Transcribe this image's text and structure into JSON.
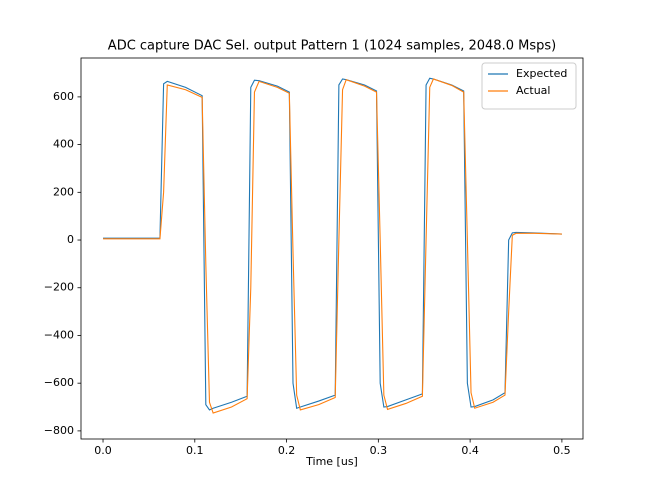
{
  "chart_data": {
    "type": "line",
    "title": "ADC capture DAC Sel. output Pattern 1 (1024 samples, 2048.0 Msps)",
    "x_label": "Time [us]",
    "x": [
      0,
      0.03,
      0.062,
      0.066,
      0.07,
      0.09,
      0.108,
      0.112,
      0.116,
      0.12,
      0.14,
      0.157,
      0.161,
      0.165,
      0.17,
      0.19,
      0.203,
      0.207,
      0.211,
      0.215,
      0.235,
      0.253,
      0.257,
      0.261,
      0.265,
      0.285,
      0.298,
      0.302,
      0.306,
      0.31,
      0.33,
      0.348,
      0.352,
      0.356,
      0.36,
      0.38,
      0.393,
      0.397,
      0.401,
      0.405,
      0.425,
      0.438,
      0.442,
      0.446,
      0.45,
      0.47,
      0.5
    ],
    "series": [
      {
        "name": "Expected",
        "color": "#1f77b4",
        "values": [
          8,
          8,
          8,
          655,
          665,
          640,
          605,
          -690,
          -712,
          -705,
          -680,
          -655,
          640,
          670,
          668,
          645,
          620,
          -600,
          -705,
          -700,
          -675,
          -650,
          650,
          675,
          672,
          650,
          625,
          -600,
          -700,
          -698,
          -670,
          -645,
          650,
          678,
          675,
          650,
          625,
          -600,
          -700,
          -698,
          -670,
          -640,
          0,
          30,
          32,
          30,
          25
        ]
      },
      {
        "name": "Actual",
        "color": "#ff7f0e",
        "values": [
          5,
          5,
          5,
          200,
          650,
          630,
          598,
          -100,
          -680,
          -725,
          -700,
          -665,
          -200,
          620,
          665,
          640,
          615,
          -50,
          -650,
          -712,
          -690,
          -660,
          0,
          630,
          672,
          645,
          620,
          0,
          -650,
          -710,
          -685,
          -655,
          0,
          640,
          675,
          648,
          620,
          0,
          -640,
          -705,
          -680,
          -650,
          -300,
          20,
          28,
          28,
          25
        ]
      }
    ],
    "xlim": [
      -0.024,
      0.523
    ],
    "ylim": [
      -834,
      763
    ],
    "xticks": [
      {
        "value": 0,
        "label": "0.0"
      },
      {
        "value": 0.1,
        "label": "0.1"
      },
      {
        "value": 0.2,
        "label": "0.2"
      },
      {
        "value": 0.3,
        "label": "0.3"
      },
      {
        "value": 0.4,
        "label": "0.4"
      },
      {
        "value": 0.5,
        "label": "0.5"
      }
    ],
    "yticks": [
      {
        "value": -800,
        "label": "−800"
      },
      {
        "value": -600,
        "label": "−600"
      },
      {
        "value": -400,
        "label": "−400"
      },
      {
        "value": -200,
        "label": "−200"
      },
      0,
      200,
      400,
      600
    ],
    "grid": false,
    "legend": "upper right"
  }
}
